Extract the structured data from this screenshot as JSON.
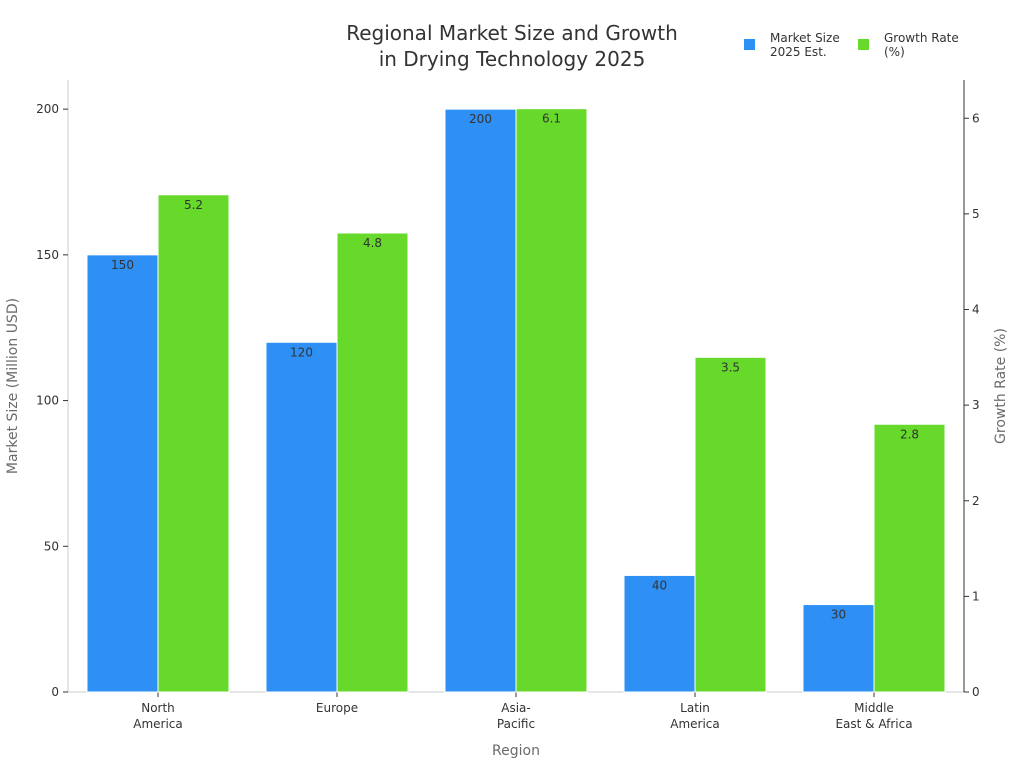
{
  "chart_data": {
    "type": "bar",
    "title_lines": [
      "Regional Market Size and Growth",
      "in Drying Technology 2025"
    ],
    "xlabel": "Region",
    "ylabel_left": "Market Size (Million USD)",
    "ylabel_right": "Growth Rate (%)",
    "categories": [
      [
        "North",
        "America"
      ],
      [
        "Europe"
      ],
      [
        "Asia-",
        "Pacific"
      ],
      [
        "Latin",
        "America"
      ],
      [
        "Middle",
        "East & Africa"
      ]
    ],
    "series": [
      {
        "name_lines": [
          "Market Size",
          "2025 Est."
        ],
        "axis": "left",
        "color": "#2e8ff5",
        "values": [
          150,
          120,
          200,
          40,
          30
        ],
        "labels": [
          "150",
          "120",
          "200",
          "40",
          "30"
        ]
      },
      {
        "name_lines": [
          "Growth Rate",
          "(%)"
        ],
        "axis": "right",
        "color": "#66d92a",
        "values": [
          5.2,
          4.8,
          6.1,
          3.5,
          2.8
        ],
        "labels": [
          "5.2",
          "4.8",
          "6.1",
          "3.5",
          "2.8"
        ]
      }
    ],
    "ylim_left": [
      0,
      210
    ],
    "ylim_right": [
      0,
      6.4
    ],
    "yticks_left": [
      "0",
      "50",
      "100",
      "150",
      "200"
    ],
    "yticks_right": [
      "0",
      "1",
      "2",
      "3",
      "4",
      "5",
      "6"
    ],
    "grid": false,
    "legend_position": "top-right"
  }
}
